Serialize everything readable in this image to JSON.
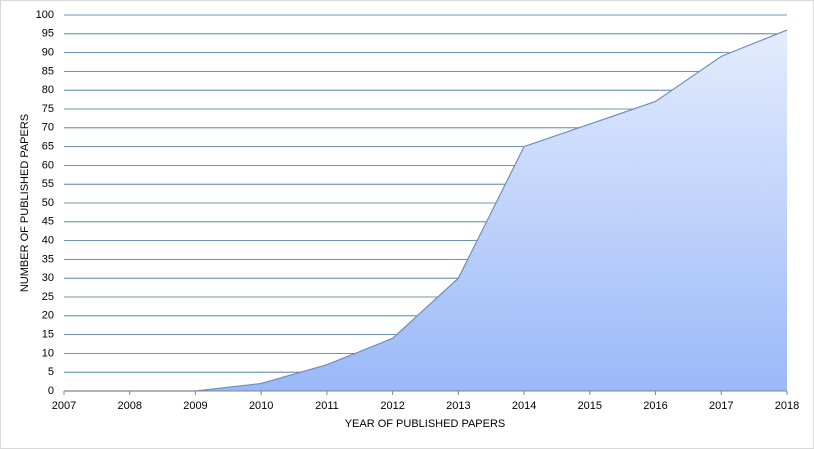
{
  "chart_data": {
    "type": "area",
    "x_label": "YEAR OF PUBLISHED PAPERS",
    "y_label": "NUMBER OF PUBLISHED PAPERS",
    "x": [
      2007,
      2008,
      2009,
      2010,
      2011,
      2012,
      2013,
      2014,
      2015,
      2016,
      2017,
      2018
    ],
    "values": [
      0,
      0,
      0,
      2,
      7,
      14,
      30,
      65,
      71,
      77,
      89,
      96
    ],
    "color": "#6f8fb8",
    "fill_gradient": [
      "#e4ecfd",
      "#9bb9f8"
    ],
    "grid_color": "#3f7295",
    "xlim": [
      2007,
      2018
    ],
    "xticks": [
      2007,
      2008,
      2009,
      2010,
      2011,
      2012,
      2013,
      2014,
      2015,
      2016,
      2017,
      2018
    ],
    "ylim": [
      0,
      100
    ],
    "yticks": [
      0,
      5,
      10,
      15,
      20,
      25,
      30,
      35,
      40,
      45,
      50,
      55,
      60,
      65,
      70,
      75,
      80,
      85,
      90,
      95,
      100
    ],
    "grid": true
  }
}
